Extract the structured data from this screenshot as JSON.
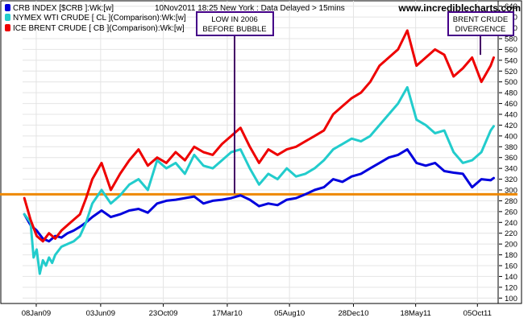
{
  "header": {
    "source_line": "10Nov2011 18:25 New York : Data Delayed > 15mins",
    "site": "www.incrediblecharts.com"
  },
  "legend": [
    {
      "label": "CRB INDEX [$CRB ]:Wk:[w]",
      "color": "#0000dd"
    },
    {
      "label": "NYMEX WTI CRUDE [ CL ](Comparison):Wk:[w]",
      "color": "#22cccc"
    },
    {
      "label": "ICE BRENT CRUDE [ CB ](Comparison):Wk:[w]",
      "color": "#ee0000"
    }
  ],
  "annotations": {
    "low2006": [
      "LOW IN 2006",
      "BEFORE BUBBLE"
    ],
    "divergence": [
      "BRENT CRUDE",
      "DIVERGENCE"
    ],
    "line_color": "#440066",
    "border_color": "#440088"
  },
  "colors": {
    "support_line": "#ee8800",
    "grid": "#e4e4e4",
    "axis": "#000000"
  },
  "chart_data": {
    "type": "line",
    "x_tick_labels": [
      "08Jan09",
      "03Jun09",
      "23Oct09",
      "17Mar10",
      "05Aug10",
      "28Dec10",
      "18May11",
      "05Oct11"
    ],
    "ylim": [
      90,
      650
    ],
    "y_ticks": [
      100,
      120,
      140,
      160,
      180,
      200,
      220,
      240,
      260,
      280,
      300,
      320,
      340,
      360,
      380,
      400,
      420,
      440,
      460,
      480,
      500,
      520,
      540,
      560,
      580,
      600,
      620,
      640
    ],
    "horizontal_line": 292,
    "grid": true,
    "legend_position": "top-left",
    "x_range": [
      "2008-12-08",
      "2011-11-21"
    ],
    "series": [
      {
        "name": "CRB INDEX [$CRB ]:Wk:[w]",
        "color": "#0000dd",
        "x": [
          "2008-12-12",
          "2008-12-26",
          "2009-01-09",
          "2009-01-23",
          "2009-02-06",
          "2009-02-20",
          "2009-03-06",
          "2009-03-20",
          "2009-04-03",
          "2009-04-17",
          "2009-05-01",
          "2009-05-15",
          "2009-06-05",
          "2009-06-26",
          "2009-07-17",
          "2009-08-07",
          "2009-08-28",
          "2009-09-18",
          "2009-10-09",
          "2009-10-30",
          "2009-11-20",
          "2009-12-11",
          "2010-01-01",
          "2010-01-22",
          "2010-02-12",
          "2010-03-05",
          "2010-03-26",
          "2010-04-16",
          "2010-05-07",
          "2010-05-28",
          "2010-06-18",
          "2010-07-09",
          "2010-07-30",
          "2010-08-20",
          "2010-09-10",
          "2010-10-01",
          "2010-10-22",
          "2010-11-12",
          "2010-12-03",
          "2010-12-24",
          "2011-01-14",
          "2011-02-04",
          "2011-02-25",
          "2011-03-18",
          "2011-04-08",
          "2011-04-29",
          "2011-05-20",
          "2011-06-10",
          "2011-07-01",
          "2011-07-22",
          "2011-08-12",
          "2011-09-02",
          "2011-09-23",
          "2011-10-14",
          "2011-11-04",
          "2011-11-11"
        ],
        "values": [
          255,
          235,
          225,
          210,
          205,
          215,
          212,
          220,
          225,
          232,
          240,
          250,
          262,
          250,
          255,
          262,
          265,
          258,
          275,
          280,
          282,
          285,
          288,
          275,
          280,
          282,
          285,
          290,
          282,
          270,
          275,
          272,
          282,
          285,
          292,
          300,
          305,
          320,
          315,
          325,
          330,
          340,
          350,
          360,
          365,
          375,
          350,
          345,
          350,
          335,
          332,
          330,
          305,
          320,
          318,
          322
        ]
      },
      {
        "name": "NYMEX WTI CRUDE [ CL ](Comparison):Wk:[w]",
        "color": "#22cccc",
        "x": [
          "2008-12-12",
          "2008-12-26",
          "2009-01-02",
          "2009-01-09",
          "2009-01-16",
          "2009-01-23",
          "2009-01-30",
          "2009-02-06",
          "2009-02-13",
          "2009-02-20",
          "2009-03-06",
          "2009-03-20",
          "2009-04-03",
          "2009-04-17",
          "2009-05-01",
          "2009-05-15",
          "2009-06-05",
          "2009-06-26",
          "2009-07-17",
          "2009-08-07",
          "2009-08-28",
          "2009-09-18",
          "2009-10-09",
          "2009-10-30",
          "2009-11-20",
          "2009-12-11",
          "2010-01-01",
          "2010-01-22",
          "2010-02-12",
          "2010-03-05",
          "2010-03-26",
          "2010-04-16",
          "2010-05-07",
          "2010-05-28",
          "2010-06-18",
          "2010-07-09",
          "2010-07-30",
          "2010-08-20",
          "2010-09-10",
          "2010-10-01",
          "2010-10-22",
          "2010-11-12",
          "2010-12-03",
          "2010-12-24",
          "2011-01-14",
          "2011-02-04",
          "2011-02-25",
          "2011-03-18",
          "2011-04-08",
          "2011-04-29",
          "2011-05-20",
          "2011-06-10",
          "2011-07-01",
          "2011-07-22",
          "2011-08-12",
          "2011-09-02",
          "2011-09-23",
          "2011-10-14",
          "2011-11-04",
          "2011-11-11"
        ],
        "values": [
          255,
          240,
          175,
          190,
          145,
          170,
          160,
          175,
          165,
          180,
          195,
          200,
          205,
          215,
          240,
          275,
          300,
          275,
          290,
          310,
          320,
          300,
          355,
          340,
          350,
          330,
          365,
          345,
          340,
          355,
          370,
          375,
          340,
          310,
          330,
          320,
          340,
          325,
          330,
          340,
          355,
          375,
          385,
          395,
          390,
          400,
          420,
          440,
          460,
          490,
          430,
          420,
          405,
          410,
          370,
          350,
          355,
          370,
          410,
          418
        ]
      },
      {
        "name": "ICE BRENT CRUDE [ CB ](Comparison):Wk:[w]",
        "color": "#ee0000",
        "x": [
          "2008-12-12",
          "2008-12-26",
          "2009-01-09",
          "2009-01-23",
          "2009-02-06",
          "2009-02-20",
          "2009-03-06",
          "2009-03-20",
          "2009-04-03",
          "2009-04-17",
          "2009-05-01",
          "2009-05-15",
          "2009-06-05",
          "2009-06-26",
          "2009-07-17",
          "2009-08-07",
          "2009-08-28",
          "2009-09-18",
          "2009-10-09",
          "2009-10-30",
          "2009-11-20",
          "2009-12-11",
          "2010-01-01",
          "2010-01-22",
          "2010-02-12",
          "2010-03-05",
          "2010-03-26",
          "2010-04-16",
          "2010-05-07",
          "2010-05-28",
          "2010-06-18",
          "2010-07-09",
          "2010-07-30",
          "2010-08-20",
          "2010-09-10",
          "2010-10-01",
          "2010-10-22",
          "2010-11-12",
          "2010-12-03",
          "2010-12-24",
          "2011-01-14",
          "2011-02-04",
          "2011-02-25",
          "2011-03-18",
          "2011-04-08",
          "2011-04-29",
          "2011-05-20",
          "2011-06-10",
          "2011-07-01",
          "2011-07-22",
          "2011-08-12",
          "2011-09-02",
          "2011-09-23",
          "2011-10-14",
          "2011-11-04",
          "2011-11-11"
        ],
        "values": [
          285,
          245,
          215,
          205,
          220,
          210,
          225,
          235,
          245,
          255,
          285,
          320,
          350,
          300,
          330,
          355,
          375,
          345,
          360,
          350,
          370,
          355,
          380,
          370,
          365,
          385,
          400,
          415,
          380,
          350,
          375,
          365,
          375,
          380,
          390,
          400,
          410,
          440,
          455,
          470,
          480,
          500,
          530,
          545,
          560,
          595,
          530,
          545,
          560,
          550,
          510,
          525,
          545,
          500,
          530,
          545
        ]
      }
    ]
  }
}
